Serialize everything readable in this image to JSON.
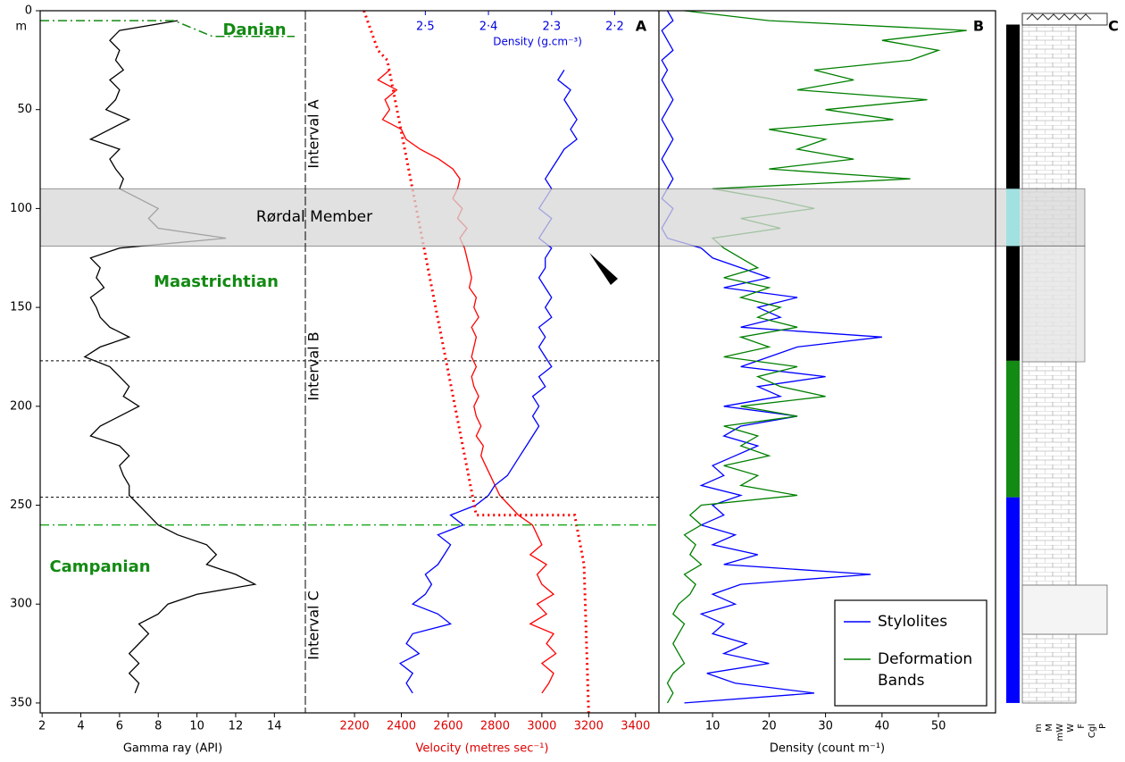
{
  "chart_data": [
    {
      "type": "line",
      "xlabel": "Gamma ray (API)",
      "xlim": [
        1.9,
        15.6
      ],
      "xticks": [
        2,
        4,
        6,
        8,
        10,
        12,
        14
      ],
      "ylim": [
        0,
        355
      ],
      "yticks": [
        0,
        50,
        100,
        150,
        200,
        250,
        300,
        350
      ],
      "y_unit": "m",
      "series": [
        {
          "color": "#000000",
          "depth": [
            5,
            10,
            15,
            20,
            25,
            30,
            35,
            40,
            45,
            50,
            55,
            60,
            65,
            70,
            75,
            80,
            85,
            90,
            95,
            100,
            105,
            110,
            115,
            120,
            125,
            130,
            135,
            140,
            145,
            150,
            155,
            160,
            165,
            170,
            175,
            180,
            185,
            190,
            195,
            200,
            205,
            210,
            215,
            220,
            225,
            230,
            235,
            240,
            245,
            250,
            255,
            260,
            265,
            270,
            275,
            280,
            285,
            290,
            295,
            300,
            305,
            310,
            315,
            320,
            325,
            330,
            335,
            340,
            345
          ],
          "values": [
            9,
            6,
            5.5,
            6,
            5.8,
            6.2,
            5.5,
            6,
            5.8,
            5.3,
            6.5,
            5.5,
            4.5,
            6,
            5.5,
            5.8,
            6.2,
            6,
            7,
            8,
            7.5,
            8,
            11.5,
            6,
            4.5,
            5,
            4.8,
            5.2,
            4.5,
            4.8,
            5,
            5.5,
            6.5,
            5,
            4.2,
            5.5,
            6,
            6.5,
            6.2,
            7,
            6,
            5,
            4.5,
            6,
            6.5,
            6,
            6.2,
            6.5,
            6.5,
            7,
            7.5,
            8,
            9,
            10.5,
            11,
            10.5,
            12,
            13,
            10,
            8.5,
            8,
            7,
            7.5,
            7,
            6.5,
            7,
            6.5,
            7,
            6.8
          ]
        }
      ],
      "stages": [
        "Danian",
        "Maastrichtian",
        "Campanian"
      ],
      "member": "Rørdal Member",
      "member_depths": [
        90,
        119
      ],
      "danian_boundary": [
        5,
        13
      ],
      "stage_boundary": 260,
      "interval_boundaries": [
        177,
        246
      ]
    },
    {
      "type": "line",
      "panel": "A",
      "xlabel": "Velocity (metres sec⁻¹)",
      "xaxis_color": "#e00000",
      "xlim": [
        1990,
        3500
      ],
      "xticks": [
        2200,
        2400,
        2600,
        2800,
        3000,
        3200,
        3400
      ],
      "x2label": "Density (g.cm⁻³)",
      "x2axis_color": "#0000e0",
      "x2lim": [
        2.69,
        2.13
      ],
      "x2ticks": [
        {
          "value": 2.5,
          "label": "2·5"
        },
        {
          "value": 2.4,
          "label": "2·4"
        },
        {
          "value": 2.3,
          "label": "2·3"
        },
        {
          "value": 2.2,
          "label": "2·2"
        }
      ],
      "ylim": [
        0,
        355
      ],
      "intervals": [
        "Interval A",
        "Interval B",
        "Interval C"
      ],
      "series": [
        {
          "color": "#ff0000",
          "depth": [
            30,
            35,
            40,
            45,
            50,
            55,
            60,
            65,
            70,
            75,
            80,
            85,
            90,
            95,
            100,
            105,
            110,
            115,
            120,
            125,
            130,
            135,
            140,
            145,
            150,
            155,
            160,
            165,
            170,
            175,
            180,
            185,
            190,
            195,
            200,
            205,
            210,
            215,
            220,
            225,
            230,
            235,
            240,
            245,
            250,
            255,
            260,
            265,
            270,
            275,
            280,
            285,
            290,
            295,
            300,
            305,
            310,
            315,
            320,
            325,
            330,
            335,
            340,
            345
          ],
          "values": [
            2350,
            2300,
            2380,
            2330,
            2350,
            2320,
            2400,
            2420,
            2480,
            2560,
            2620,
            2650,
            2640,
            2620,
            2660,
            2640,
            2680,
            2650,
            2670,
            2680,
            2690,
            2700,
            2690,
            2720,
            2710,
            2730,
            2700,
            2720,
            2710,
            2700,
            2720,
            2700,
            2710,
            2730,
            2710,
            2720,
            2740,
            2720,
            2750,
            2740,
            2760,
            2780,
            2800,
            2820,
            2860,
            2900,
            2960,
            2980,
            3000,
            2950,
            3020,
            2980,
            3000,
            3050,
            2980,
            3020,
            2950,
            3050,
            3020,
            3060,
            3000,
            3050,
            3030,
            3000
          ]
        },
        {
          "color": "#0000ff",
          "axis": "x2",
          "depth": [
            30,
            35,
            40,
            45,
            50,
            55,
            60,
            65,
            70,
            75,
            80,
            85,
            90,
            95,
            100,
            105,
            110,
            115,
            120,
            125,
            130,
            135,
            140,
            145,
            150,
            155,
            160,
            165,
            170,
            175,
            180,
            185,
            190,
            195,
            200,
            205,
            210,
            215,
            220,
            225,
            230,
            235,
            240,
            245,
            250,
            255,
            260,
            265,
            270,
            275,
            280,
            285,
            290,
            295,
            300,
            305,
            310,
            315,
            320,
            325,
            330,
            335,
            340,
            345
          ],
          "values": [
            2.28,
            2.29,
            2.27,
            2.28,
            2.27,
            2.26,
            2.27,
            2.26,
            2.28,
            2.29,
            2.3,
            2.31,
            2.3,
            2.31,
            2.32,
            2.3,
            2.31,
            2.32,
            2.3,
            2.31,
            2.31,
            2.32,
            2.31,
            2.3,
            2.31,
            2.3,
            2.32,
            2.31,
            2.32,
            2.31,
            2.3,
            2.32,
            2.31,
            2.33,
            2.32,
            2.33,
            2.32,
            2.33,
            2.34,
            2.35,
            2.36,
            2.37,
            2.39,
            2.4,
            2.42,
            2.46,
            2.44,
            2.48,
            2.46,
            2.47,
            2.48,
            2.5,
            2.49,
            2.5,
            2.52,
            2.48,
            2.46,
            2.52,
            2.53,
            2.51,
            2.54,
            2.52,
            2.53,
            2.52
          ]
        },
        {
          "color": "#ff0000",
          "style": "dotted",
          "depth": [
            0,
            20,
            25,
            255,
            255,
            280,
            355
          ],
          "values": [
            2240,
            2300,
            2340,
            2720,
            3140,
            3180,
            3200
          ]
        }
      ]
    },
    {
      "type": "line",
      "panel": "B",
      "xlabel": "Density (count m⁻¹)",
      "xlim": [
        0.5,
        60.1
      ],
      "xticks": [
        10,
        20,
        30,
        40,
        50
      ],
      "ylim": [
        0,
        355
      ],
      "legend": "lower right",
      "series": [
        {
          "name": "Stylolites",
          "color": "#0000ff",
          "depth": [
            0,
            5,
            10,
            15,
            20,
            25,
            30,
            35,
            40,
            45,
            50,
            55,
            60,
            65,
            70,
            75,
            80,
            85,
            90,
            95,
            100,
            105,
            110,
            115,
            120,
            125,
            130,
            135,
            140,
            145,
            150,
            155,
            160,
            165,
            170,
            175,
            180,
            185,
            190,
            195,
            200,
            205,
            210,
            215,
            220,
            225,
            230,
            235,
            240,
            245,
            250,
            255,
            260,
            265,
            270,
            275,
            280,
            285,
            290,
            295,
            300,
            305,
            310,
            315,
            320,
            325,
            330,
            335,
            340,
            345,
            350
          ],
          "values": [
            2,
            3,
            1,
            2,
            3,
            1,
            2,
            1,
            2,
            3,
            2,
            1,
            2,
            3,
            2,
            1,
            2,
            3,
            2,
            1,
            3,
            2,
            1,
            2,
            8,
            10,
            15,
            20,
            12,
            25,
            18,
            22,
            15,
            40,
            25,
            20,
            15,
            30,
            18,
            22,
            12,
            25,
            15,
            12,
            18,
            14,
            10,
            12,
            8,
            15,
            10,
            12,
            8,
            14,
            10,
            18,
            12,
            38,
            15,
            10,
            14,
            8,
            12,
            10,
            16,
            12,
            20,
            9,
            14,
            28,
            5
          ]
        },
        {
          "name": "Deformation Bands",
          "color": "#008000",
          "depth": [
            0,
            5,
            10,
            15,
            20,
            25,
            30,
            35,
            40,
            45,
            50,
            55,
            60,
            65,
            70,
            75,
            80,
            85,
            90,
            95,
            100,
            105,
            110,
            115,
            120,
            125,
            130,
            135,
            140,
            145,
            150,
            155,
            160,
            165,
            170,
            175,
            180,
            185,
            190,
            195,
            200,
            205,
            210,
            215,
            220,
            225,
            230,
            235,
            240,
            245,
            250,
            255,
            260,
            265,
            270,
            275,
            280,
            285,
            290,
            295,
            300,
            305,
            310,
            315,
            320,
            325,
            330,
            335,
            340,
            345,
            350
          ],
          "values": [
            5,
            20,
            55,
            40,
            50,
            45,
            28,
            35,
            25,
            48,
            30,
            42,
            20,
            30,
            25,
            35,
            20,
            45,
            10,
            20,
            28,
            15,
            22,
            10,
            12,
            15,
            18,
            12,
            20,
            15,
            22,
            18,
            25,
            15,
            20,
            12,
            25,
            18,
            22,
            30,
            15,
            25,
            12,
            18,
            15,
            20,
            12,
            18,
            15,
            25,
            8,
            6,
            8,
            5,
            7,
            6,
            8,
            5,
            7,
            6,
            4,
            3,
            5,
            4,
            3,
            4,
            5,
            3,
            2,
            3,
            2
          ]
        }
      ]
    },
    {
      "type": "column",
      "panel": "C",
      "ylim": [
        0,
        355
      ],
      "intervals": [
        {
          "top": 7,
          "base": 90,
          "color": "#000000"
        },
        {
          "top": 90,
          "base": 119,
          "color": "#00ffff"
        },
        {
          "top": 119,
          "base": 177,
          "color": "#000000"
        },
        {
          "top": 177,
          "base": 246,
          "color": "#138a13"
        },
        {
          "top": 246,
          "base": 350,
          "color": "#0000ff"
        }
      ],
      "texture_labels": [
        "m",
        "M",
        "mW",
        "W",
        "F",
        "Cgl",
        "P"
      ]
    }
  ]
}
